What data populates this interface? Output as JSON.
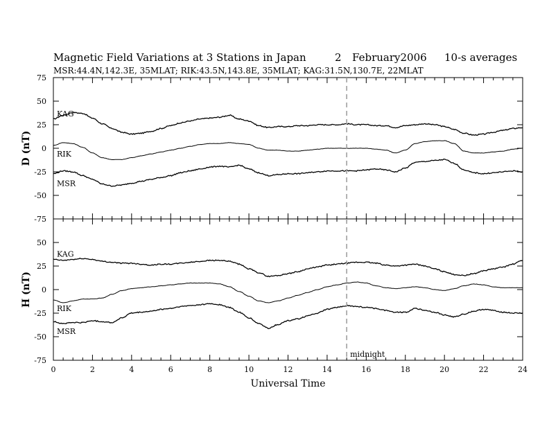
{
  "header": {
    "title": "Magnetic Field Variations at 3 Stations in Japan",
    "day": "2",
    "month_year": "February2006",
    "averaging": "10-s averages",
    "stations_info": "MSR:44.4N,142.3E, 35MLAT;   RIK:43.5N,143.8E, 35MLAT;   KAG:31.5N,130.7E, 22MLAT"
  },
  "chart_data": [
    {
      "type": "line",
      "ylabel": "D (nT)",
      "ylim": [
        -75,
        75
      ],
      "yticks": [
        -75,
        -50,
        -25,
        0,
        25,
        50,
        75
      ],
      "xlim": [
        0,
        24
      ],
      "series": [
        {
          "name": "KAG",
          "x": [
            0,
            0.5,
            1,
            1.5,
            2,
            2.5,
            3,
            3.5,
            4,
            4.5,
            5,
            5.5,
            6,
            6.5,
            7,
            7.5,
            8,
            8.5,
            9,
            9.5,
            10,
            10.5,
            11,
            11.5,
            12,
            12.5,
            13,
            13.5,
            14,
            14.5,
            15,
            15.5,
            16,
            16.5,
            17,
            17.5,
            18,
            18.5,
            19,
            19.5,
            20,
            20.5,
            21,
            21.5,
            22,
            22.5,
            23,
            23.5,
            24
          ],
          "y": [
            31,
            35,
            38,
            37,
            32,
            26,
            21,
            17,
            15,
            16,
            18,
            21,
            24,
            27,
            29,
            31,
            32,
            33,
            35,
            31,
            29,
            24,
            22,
            23,
            23,
            24,
            24,
            25,
            25,
            25,
            26,
            25,
            25,
            24,
            24,
            22,
            24,
            25,
            26,
            25,
            23,
            20,
            16,
            14,
            15,
            17,
            19,
            21,
            22
          ]
        },
        {
          "name": "RIK",
          "x": [
            0,
            0.5,
            1,
            1.5,
            2,
            2.5,
            3,
            3.5,
            4,
            4.5,
            5,
            5.5,
            6,
            6.5,
            7,
            7.5,
            8,
            8.5,
            9,
            9.5,
            10,
            10.5,
            11,
            11.5,
            12,
            12.5,
            13,
            13.5,
            14,
            14.5,
            15,
            15.5,
            16,
            16.5,
            17,
            17.5,
            18,
            18.5,
            19,
            19.5,
            20,
            20.5,
            21,
            21.5,
            22,
            22.5,
            23,
            23.5,
            24
          ],
          "y": [
            3,
            6,
            5,
            1,
            -5,
            -10,
            -12,
            -12,
            -10,
            -8,
            -6,
            -4,
            -2,
            0,
            2,
            4,
            5,
            5,
            6,
            5,
            4,
            0,
            -2,
            -2,
            -3,
            -3,
            -2,
            -1,
            0,
            0,
            0,
            0,
            0,
            -1,
            -2,
            -5,
            -2,
            5,
            7,
            8,
            8,
            5,
            -3,
            -5,
            -5,
            -4,
            -3,
            -1,
            0
          ]
        },
        {
          "name": "MSR",
          "x": [
            0,
            0.5,
            1,
            1.5,
            2,
            2.5,
            3,
            3.5,
            4,
            4.5,
            5,
            5.5,
            6,
            6.5,
            7,
            7.5,
            8,
            8.5,
            9,
            9.5,
            10,
            10.5,
            11,
            11.5,
            12,
            12.5,
            13,
            13.5,
            14,
            14.5,
            15,
            15.5,
            16,
            16.5,
            17,
            17.5,
            18,
            18.5,
            19,
            19.5,
            20,
            20.5,
            21,
            21.5,
            22,
            22.5,
            23,
            23.5,
            24
          ],
          "y": [
            -27,
            -24,
            -25,
            -29,
            -33,
            -38,
            -40,
            -39,
            -37,
            -35,
            -33,
            -31,
            -29,
            -26,
            -24,
            -22,
            -20,
            -19,
            -20,
            -18,
            -22,
            -26,
            -29,
            -28,
            -27,
            -27,
            -26,
            -25,
            -24,
            -24,
            -24,
            -24,
            -23,
            -22,
            -23,
            -25,
            -21,
            -15,
            -14,
            -13,
            -12,
            -16,
            -23,
            -26,
            -27,
            -26,
            -25,
            -24,
            -25
          ]
        }
      ]
    },
    {
      "type": "line",
      "ylabel": "H (nT)",
      "ylim": [
        -75,
        75
      ],
      "yticks": [
        -75,
        -50,
        -25,
        0,
        25,
        50,
        75
      ],
      "xlim": [
        0,
        24
      ],
      "xlabel": "Universal Time",
      "xticks": [
        0,
        2,
        4,
        6,
        8,
        10,
        12,
        14,
        16,
        18,
        20,
        22,
        24
      ],
      "series": [
        {
          "name": "KAG",
          "x": [
            0,
            0.5,
            1,
            1.5,
            2,
            2.5,
            3,
            3.5,
            4,
            4.5,
            5,
            5.5,
            6,
            6.5,
            7,
            7.5,
            8,
            8.5,
            9,
            9.5,
            10,
            10.5,
            11,
            11.5,
            12,
            12.5,
            13,
            13.5,
            14,
            14.5,
            15,
            15.5,
            16,
            16.5,
            17,
            17.5,
            18,
            18.5,
            19,
            19.5,
            20,
            20.5,
            21,
            21.5,
            22,
            22.5,
            23,
            23.5,
            24
          ],
          "y": [
            32,
            31,
            32,
            33,
            32,
            30,
            29,
            28,
            28,
            27,
            26,
            27,
            27,
            28,
            29,
            30,
            31,
            31,
            30,
            27,
            22,
            18,
            14,
            15,
            17,
            19,
            22,
            24,
            26,
            27,
            28,
            29,
            29,
            28,
            26,
            25,
            26,
            27,
            25,
            22,
            19,
            16,
            15,
            17,
            20,
            22,
            24,
            27,
            31
          ]
        },
        {
          "name": "RIK",
          "x": [
            0,
            0.5,
            1,
            1.5,
            2,
            2.5,
            3,
            3.5,
            4,
            4.5,
            5,
            5.5,
            6,
            6.5,
            7,
            7.5,
            8,
            8.5,
            9,
            9.5,
            10,
            10.5,
            11,
            11.5,
            12,
            12.5,
            13,
            13.5,
            14,
            14.5,
            15,
            15.5,
            16,
            16.5,
            17,
            17.5,
            18,
            18.5,
            19,
            19.5,
            20,
            20.5,
            21,
            21.5,
            22,
            22.5,
            23,
            23.5,
            24
          ],
          "y": [
            -11,
            -14,
            -12,
            -10,
            -10,
            -9,
            -5,
            -1,
            1,
            2,
            3,
            4,
            5,
            6,
            7,
            7,
            7,
            6,
            3,
            -2,
            -7,
            -12,
            -14,
            -12,
            -9,
            -6,
            -3,
            0,
            3,
            5,
            7,
            8,
            7,
            4,
            2,
            1,
            2,
            3,
            2,
            0,
            -1,
            1,
            4,
            6,
            5,
            3,
            2,
            2,
            2
          ]
        },
        {
          "name": "MSR",
          "x": [
            0,
            0.5,
            1,
            1.5,
            2,
            2.5,
            3,
            3.5,
            4,
            4.5,
            5,
            5.5,
            6,
            6.5,
            7,
            7.5,
            8,
            8.5,
            9,
            9.5,
            10,
            10.5,
            11,
            11.5,
            12,
            12.5,
            13,
            13.5,
            14,
            14.5,
            15,
            15.5,
            16,
            16.5,
            17,
            17.5,
            18,
            18.5,
            19,
            19.5,
            20,
            20.5,
            21,
            21.5,
            22,
            22.5,
            23,
            23.5,
            24
          ],
          "y": [
            -34,
            -36,
            -35,
            -35,
            -33,
            -34,
            -35,
            -30,
            -25,
            -24,
            -23,
            -21,
            -20,
            -18,
            -17,
            -16,
            -15,
            -16,
            -19,
            -24,
            -30,
            -36,
            -41,
            -37,
            -33,
            -31,
            -28,
            -25,
            -21,
            -19,
            -17,
            -18,
            -19,
            -20,
            -22,
            -24,
            -24,
            -20,
            -22,
            -24,
            -27,
            -29,
            -26,
            -23,
            -21,
            -22,
            -24,
            -25,
            -25
          ]
        }
      ]
    }
  ],
  "marker": {
    "x": 15,
    "label": "midnight"
  }
}
